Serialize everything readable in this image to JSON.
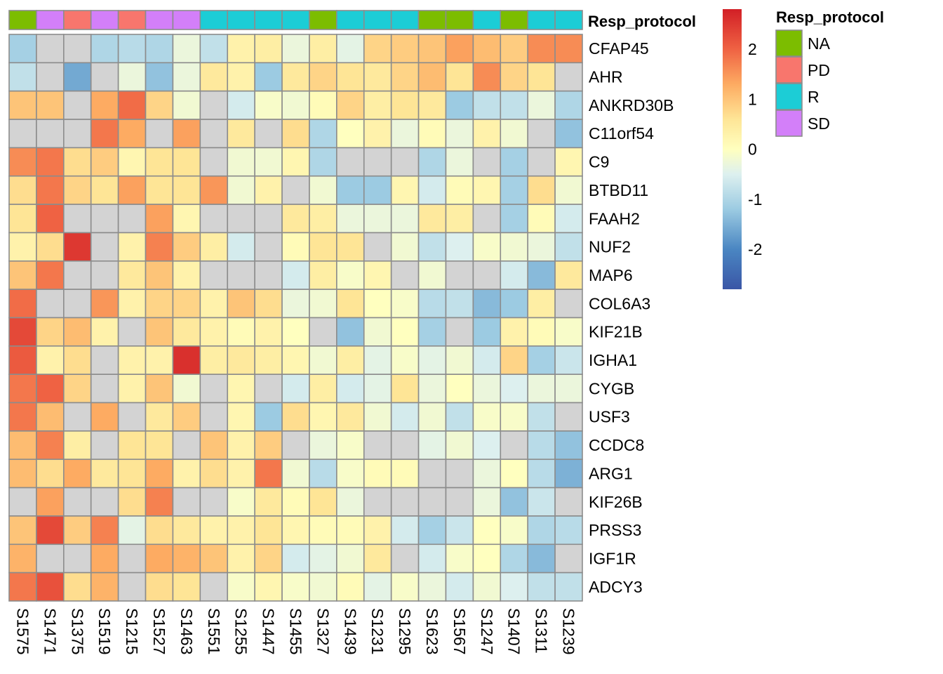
{
  "chart_data": {
    "type": "heatmap",
    "columns": [
      "S1575",
      "S1471",
      "S1375",
      "S1519",
      "S1215",
      "S1527",
      "S1463",
      "S1551",
      "S1255",
      "S1447",
      "S1455",
      "S1327",
      "S1439",
      "S1231",
      "S1295",
      "S1623",
      "S1567",
      "S1247",
      "S1407",
      "S1311",
      "S1239"
    ],
    "rows": [
      "CFAP45",
      "AHR",
      "ANKRD30B",
      "C11orf54",
      "C9",
      "BTBD11",
      "FAAH2",
      "NUF2",
      "MAP6",
      "COL6A3",
      "KIF21B",
      "IGHA1",
      "CYGB",
      "USF3",
      "CCDC8",
      "ARG1",
      "KIF26B",
      "PRSS3",
      "IGF1R",
      "ADCY3"
    ],
    "values": [
      [
        -1.1,
        null,
        null,
        -1.0,
        -0.9,
        -1.0,
        -0.3,
        -0.8,
        0.3,
        0.4,
        -0.3,
        0.4,
        -0.4,
        0.8,
        0.9,
        1.0,
        1.4,
        1.1,
        0.9,
        1.6,
        1.6
      ],
      [
        -0.8,
        null,
        -1.6,
        null,
        -0.3,
        -1.3,
        -0.3,
        0.5,
        0.3,
        -1.2,
        0.5,
        0.8,
        0.6,
        0.5,
        0.8,
        1.1,
        0.6,
        1.6,
        0.8,
        0.6,
        null
      ],
      [
        1.0,
        1.0,
        null,
        1.3,
        1.9,
        0.8,
        -0.2,
        null,
        -0.6,
        -0.1,
        -0.2,
        0.1,
        0.8,
        0.4,
        0.6,
        0.5,
        -1.2,
        -0.8,
        -0.8,
        -0.3,
        -1.0
      ],
      [
        null,
        null,
        null,
        1.8,
        1.3,
        null,
        1.4,
        null,
        0.5,
        null,
        0.7,
        -1.0,
        0.0,
        0.3,
        -0.3,
        0.1,
        -0.3,
        0.3,
        -0.2,
        null,
        -1.3
      ],
      [
        1.6,
        1.8,
        0.7,
        0.9,
        0.2,
        0.6,
        0.6,
        null,
        -0.2,
        -0.2,
        0.2,
        -1.0,
        null,
        null,
        null,
        -1.0,
        -0.3,
        null,
        -1.1,
        null,
        0.2
      ],
      [
        0.7,
        1.8,
        0.8,
        0.6,
        1.4,
        0.6,
        0.6,
        1.5,
        -0.2,
        0.3,
        null,
        -0.2,
        -1.2,
        -1.2,
        0.2,
        -0.6,
        0.1,
        0.2,
        -1.1,
        0.7,
        -0.2
      ],
      [
        0.6,
        2.0,
        null,
        null,
        null,
        1.4,
        0.2,
        null,
        null,
        null,
        0.5,
        0.4,
        -0.3,
        -0.3,
        -0.3,
        0.5,
        0.4,
        null,
        -1.1,
        0.1,
        -0.6
      ],
      [
        0.3,
        0.7,
        2.5,
        null,
        0.3,
        1.7,
        0.9,
        0.4,
        -0.6,
        null,
        0.1,
        0.6,
        0.6,
        null,
        -0.2,
        -0.8,
        -0.5,
        -0.1,
        -0.2,
        -0.3,
        -0.8
      ],
      [
        1.0,
        1.8,
        null,
        null,
        0.5,
        1.0,
        0.3,
        null,
        null,
        null,
        -0.6,
        0.4,
        -0.1,
        0.2,
        null,
        -0.2,
        null,
        null,
        -0.6,
        -1.4,
        0.5
      ],
      [
        1.9,
        null,
        null,
        1.5,
        0.3,
        0.8,
        0.8,
        0.3,
        1.0,
        0.7,
        -0.3,
        -0.2,
        0.6,
        0.0,
        -0.1,
        -0.9,
        -0.8,
        -1.4,
        -1.2,
        0.4,
        null
      ],
      [
        2.3,
        0.8,
        1.1,
        0.3,
        null,
        1.0,
        0.5,
        0.3,
        0.1,
        0.3,
        0.0,
        null,
        -1.3,
        -0.2,
        0.0,
        -1.1,
        null,
        -1.2,
        0.3,
        0.1,
        -0.1
      ],
      [
        2.1,
        0.3,
        0.7,
        null,
        0.3,
        0.3,
        2.6,
        0.4,
        0.5,
        0.4,
        0.2,
        -0.2,
        0.4,
        -0.4,
        -0.1,
        -0.4,
        -0.2,
        -0.6,
        0.8,
        -1.1,
        -0.7
      ],
      [
        1.8,
        2.0,
        0.8,
        null,
        0.3,
        1.0,
        -0.2,
        null,
        0.2,
        null,
        -0.6,
        0.4,
        -0.6,
        -0.4,
        0.6,
        -0.3,
        0.0,
        -0.3,
        -0.5,
        -0.3,
        -0.3
      ],
      [
        1.8,
        1.1,
        null,
        1.3,
        null,
        0.5,
        0.9,
        null,
        0.2,
        -1.2,
        0.7,
        0.2,
        0.5,
        -0.2,
        -0.6,
        -0.2,
        -0.8,
        -0.1,
        -0.1,
        -0.8,
        null
      ],
      [
        1.1,
        1.7,
        0.4,
        null,
        0.6,
        0.6,
        null,
        1.0,
        0.3,
        0.9,
        null,
        -0.3,
        -0.1,
        null,
        null,
        -0.4,
        -0.2,
        -0.5,
        null,
        -0.9,
        -1.3
      ],
      [
        1.1,
        0.7,
        1.3,
        0.5,
        0.6,
        1.3,
        0.3,
        0.7,
        0.3,
        1.8,
        -0.2,
        -0.9,
        -0.1,
        0.1,
        0.1,
        null,
        null,
        -0.3,
        0.0,
        -0.9,
        -1.5
      ],
      [
        null,
        1.4,
        null,
        null,
        0.7,
        1.7,
        null,
        null,
        -0.1,
        0.5,
        0.1,
        0.6,
        -0.3,
        null,
        null,
        null,
        null,
        -0.3,
        -1.3,
        -0.7,
        null
      ],
      [
        1.0,
        2.3,
        0.9,
        1.7,
        -0.4,
        0.7,
        0.5,
        0.3,
        0.3,
        0.6,
        0.2,
        0.1,
        0.1,
        0.3,
        -0.6,
        -1.1,
        -0.7,
        0.0,
        -0.1,
        -1.0,
        -0.9
      ],
      [
        1.2,
        null,
        null,
        1.3,
        null,
        1.3,
        1.2,
        1.0,
        0.3,
        0.8,
        -0.6,
        -0.4,
        -0.2,
        0.5,
        null,
        -0.6,
        -0.1,
        0.0,
        -1.0,
        -1.4,
        null
      ],
      [
        1.8,
        2.2,
        0.7,
        1.2,
        null,
        0.7,
        0.6,
        null,
        -0.1,
        0.2,
        -0.1,
        -0.2,
        0.1,
        -0.4,
        -0.1,
        -0.3,
        -0.6,
        -0.2,
        -0.5,
        -0.8,
        -0.8
      ]
    ],
    "missing_color": "#d3d3d3",
    "color_scale": {
      "min": -2.8,
      "max": 2.8,
      "stops": [
        {
          "v": -2.8,
          "c": "#3a56a6"
        },
        {
          "v": -2.0,
          "c": "#4a86c2"
        },
        {
          "v": -1.2,
          "c": "#9ccbe2"
        },
        {
          "v": -0.5,
          "c": "#ddf0ef"
        },
        {
          "v": 0.0,
          "c": "#ffffbf"
        },
        {
          "v": 0.6,
          "c": "#fee596"
        },
        {
          "v": 1.3,
          "c": "#fdab62"
        },
        {
          "v": 2.0,
          "c": "#ef6243"
        },
        {
          "v": 2.8,
          "c": "#d21f26"
        }
      ],
      "ticks": [
        2,
        1,
        0,
        -1,
        -2
      ],
      "tick_labels": [
        "2",
        "1",
        "0",
        "-1",
        "-2"
      ]
    },
    "annotation": {
      "title": "Resp_protocol",
      "values": [
        "NA",
        "SD",
        "PD",
        "SD",
        "PD",
        "SD",
        "SD",
        "R",
        "R",
        "R",
        "R",
        "NA",
        "R",
        "R",
        "R",
        "NA",
        "NA",
        "R",
        "NA",
        "R",
        "R"
      ],
      "colors": {
        "NA": "#7cbd00",
        "PD": "#f8766d",
        "R": "#1ccdd6",
        "SD": "#d37ff9"
      },
      "legend": [
        "NA",
        "PD",
        "R",
        "SD"
      ]
    }
  }
}
